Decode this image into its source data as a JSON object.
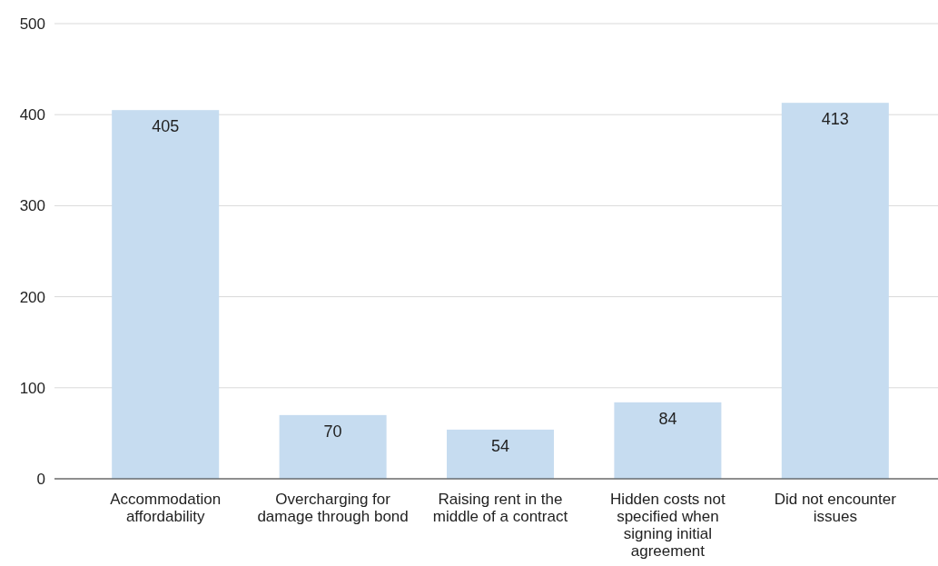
{
  "chart_data": {
    "type": "bar",
    "categories": [
      "Accommodation affordability",
      "Overcharging for damage through bond",
      "Raising rent in the middle of a contract",
      "Hidden costs not specified when signing initial agreement",
      "Did not encounter issues"
    ],
    "values": [
      405,
      70,
      54,
      84,
      413
    ],
    "color": "#c6dcf0",
    "ylim": [
      0,
      500
    ],
    "yticks": [
      0,
      100,
      200,
      300,
      400,
      500
    ],
    "grid": "y",
    "data_labels": true
  }
}
